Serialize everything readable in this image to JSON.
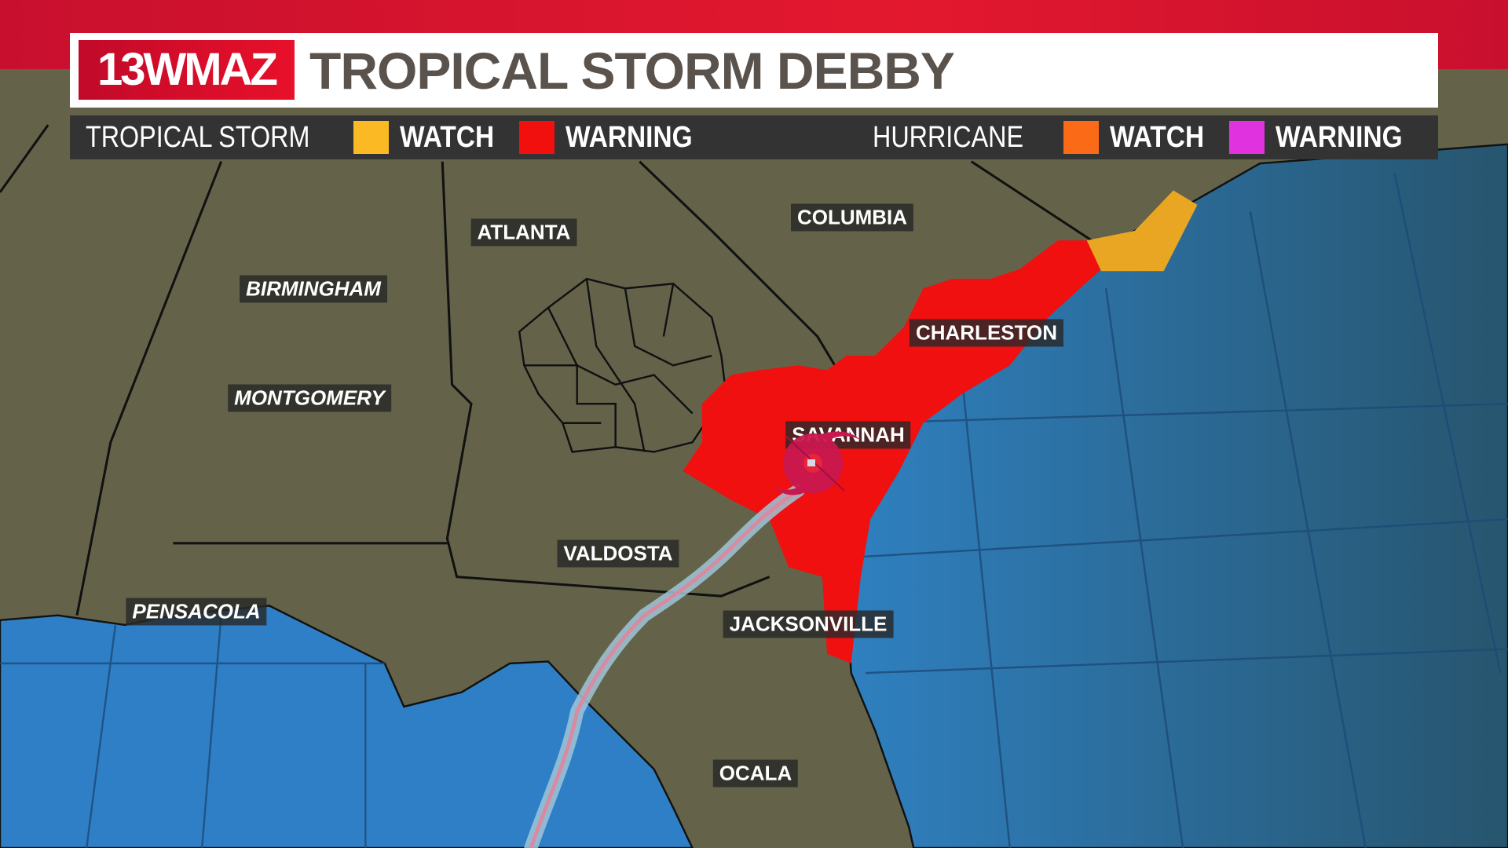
{
  "header": {
    "logo_text": "13WMAZ",
    "title": "TROPICAL STORM DEBBY"
  },
  "legend": {
    "tropical_storm_label": "TROPICAL STORM",
    "ts_watch": "WATCH",
    "ts_warning": "WARNING",
    "hurricane_label": "HURRICANE",
    "h_watch": "WATCH",
    "h_warning": "WARNING",
    "colors": {
      "ts_watch": "#fbb923",
      "ts_warning": "#f2100f",
      "h_watch": "#fb6a17",
      "h_warning": "#e132e0"
    }
  },
  "cities": {
    "atlanta": "ATLANTA",
    "columbia": "COLUMBIA",
    "birmingham": "BIRMINGHAM",
    "montgomery": "MONTGOMERY",
    "charleston": "CHARLESTON",
    "savannah": "SAVANNAH",
    "valdosta": "VALDOSTA",
    "pensacola": "PENSACOLA",
    "jacksonville": "JACKSONVILLE",
    "ocala": "OCALA"
  },
  "storm": {
    "icon": "tropical-storm-icon",
    "color": "#c8184f"
  }
}
